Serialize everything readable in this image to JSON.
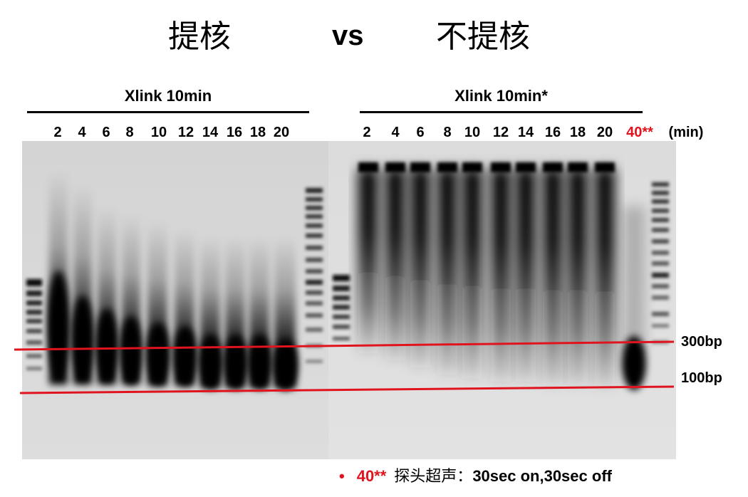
{
  "header": {
    "left_title": "提核",
    "vs": "vs",
    "right_title": "不提核"
  },
  "groups": {
    "left_label": "Xlink 10min",
    "right_label": "Xlink 10min*"
  },
  "lanes": {
    "left": [
      "2",
      "4",
      "6",
      "8",
      "10",
      "12",
      "14",
      "16",
      "18",
      "20"
    ],
    "right": [
      "2",
      "4",
      "6",
      "8",
      "10",
      "12",
      "14",
      "16",
      "18",
      "20"
    ],
    "right_extra": "40**",
    "unit": "(min)"
  },
  "markers": {
    "upper": "300bp",
    "lower": "100bp"
  },
  "footnote": {
    "bullet": "•",
    "key": "40**",
    "description": "探头超声：",
    "spec": "30sec on,30sec off"
  },
  "colors": {
    "highlight_red": "#e0141e",
    "gel_background": "#d9d9d9"
  }
}
